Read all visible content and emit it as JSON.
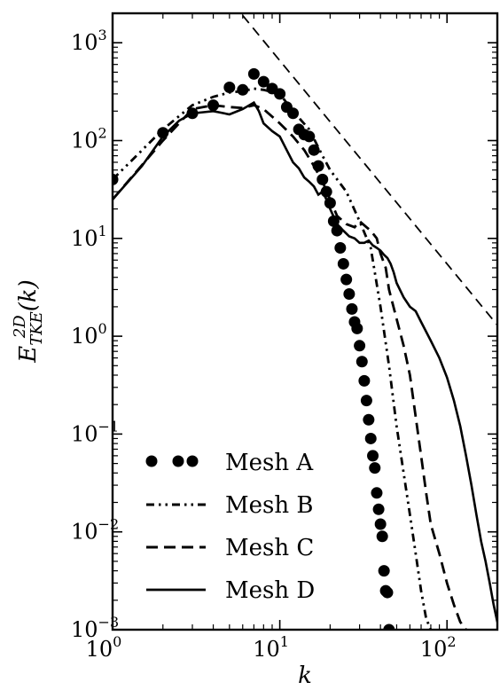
{
  "chart_data": {
    "type": "line",
    "xlabel": "k",
    "ylabel": {
      "base": "E",
      "sup": "2D",
      "sub": "TKE",
      "arg": "(k)"
    },
    "xscale": "log",
    "yscale": "log",
    "xlim": [
      1,
      200
    ],
    "ylim": [
      0.001,
      2000
    ],
    "grid": false,
    "legend_position": "bottom-left",
    "x_ticks": [
      {
        "value": 1,
        "base": "10",
        "exp": "0"
      },
      {
        "value": 10,
        "base": "10",
        "exp": "1"
      },
      {
        "value": 100,
        "base": "10",
        "exp": "2"
      }
    ],
    "y_ticks": [
      {
        "value": 0.001,
        "base": "10",
        "exp": "−3"
      },
      {
        "value": 0.01,
        "base": "10",
        "exp": "−2"
      },
      {
        "value": 0.1,
        "base": "10",
        "exp": "−1"
      },
      {
        "value": 1,
        "base": "10",
        "exp": "0"
      },
      {
        "value": 10,
        "base": "10",
        "exp": "1"
      },
      {
        "value": 100,
        "base": "10",
        "exp": "2"
      },
      {
        "value": 1000,
        "base": "10",
        "exp": "3"
      }
    ],
    "reference_line": {
      "x": [
        6,
        200
      ],
      "y": [
        1900,
        1.3
      ]
    },
    "series": [
      {
        "name": "Mesh A",
        "style": "dots",
        "x": [
          1,
          2,
          3,
          4,
          5,
          6,
          7,
          8,
          9,
          10,
          11,
          12,
          13,
          14,
          15,
          16,
          17,
          18,
          19,
          20,
          21,
          22,
          23,
          24,
          25,
          26,
          27,
          28,
          29,
          30,
          31,
          32,
          33,
          34,
          35,
          36,
          37,
          38,
          39,
          40,
          41,
          42,
          43,
          44,
          45
        ],
        "y": [
          40,
          120,
          190,
          230,
          350,
          330,
          480,
          400,
          340,
          300,
          220,
          190,
          130,
          115,
          110,
          80,
          55,
          40,
          30,
          23,
          15,
          12,
          8,
          5.5,
          3.8,
          2.7,
          1.9,
          1.4,
          1.2,
          0.8,
          0.55,
          0.35,
          0.22,
          0.14,
          0.09,
          0.06,
          0.045,
          0.025,
          0.017,
          0.012,
          0.009,
          0.004,
          0.0025,
          0.0024,
          0.001
        ]
      },
      {
        "name": "Mesh B",
        "style": "dash-dot-dot",
        "x": [
          1,
          2,
          3,
          4,
          5,
          6,
          7,
          8,
          10,
          12,
          15,
          18,
          20,
          25,
          30,
          35,
          40,
          45,
          50,
          55,
          60,
          65,
          70,
          75,
          80
        ],
        "y": [
          40,
          130,
          230,
          280,
          310,
          320,
          340,
          330,
          300,
          200,
          130,
          70,
          50,
          30,
          15,
          8,
          2,
          0.5,
          0.12,
          0.04,
          0.015,
          0.006,
          0.0025,
          0.0013,
          0.001
        ]
      },
      {
        "name": "Mesh C",
        "style": "dashed",
        "x": [
          1,
          2,
          3,
          4,
          5,
          6,
          7,
          8,
          10,
          12,
          14,
          16,
          18,
          20,
          22,
          25,
          28,
          30,
          33,
          35,
          38,
          40,
          43,
          45,
          50,
          55,
          60,
          65,
          70,
          75,
          80,
          90,
          100,
          110,
          120,
          130
        ],
        "y": [
          25,
          100,
          210,
          230,
          220,
          215,
          230,
          210,
          150,
          110,
          80,
          55,
          38,
          25,
          17,
          14,
          13,
          15,
          13,
          12,
          10,
          7,
          5,
          3,
          1.5,
          0.8,
          0.4,
          0.15,
          0.06,
          0.025,
          0.012,
          0.006,
          0.003,
          0.0018,
          0.0012,
          0.001
        ]
      },
      {
        "name": "Mesh D",
        "style": "solid",
        "x": [
          1,
          1.5,
          2,
          2.5,
          3,
          3.5,
          4,
          5,
          6,
          7,
          7.5,
          8,
          9,
          10,
          11,
          12,
          13,
          14,
          15,
          16,
          17,
          18,
          19,
          20,
          22,
          24,
          26,
          28,
          30,
          32,
          34,
          36,
          38,
          40,
          42,
          44,
          46,
          48,
          50,
          55,
          60,
          65,
          70,
          80,
          90,
          100,
          110,
          120,
          130,
          140,
          150,
          160,
          170,
          180,
          190,
          200
        ],
        "y": [
          25,
          55,
          110,
          160,
          190,
          195,
          200,
          185,
          210,
          245,
          200,
          150,
          125,
          110,
          80,
          60,
          52,
          42,
          38,
          34,
          28,
          30,
          25,
          20,
          14,
          12,
          10.5,
          10,
          9,
          9,
          9.5,
          8.5,
          8,
          7.5,
          6.8,
          6.3,
          5.5,
          4.5,
          3.5,
          2.5,
          2.0,
          1.8,
          1.4,
          0.9,
          0.6,
          0.38,
          0.22,
          0.12,
          0.06,
          0.03,
          0.015,
          0.008,
          0.005,
          0.003,
          0.0018,
          0.0012
        ]
      }
    ]
  }
}
